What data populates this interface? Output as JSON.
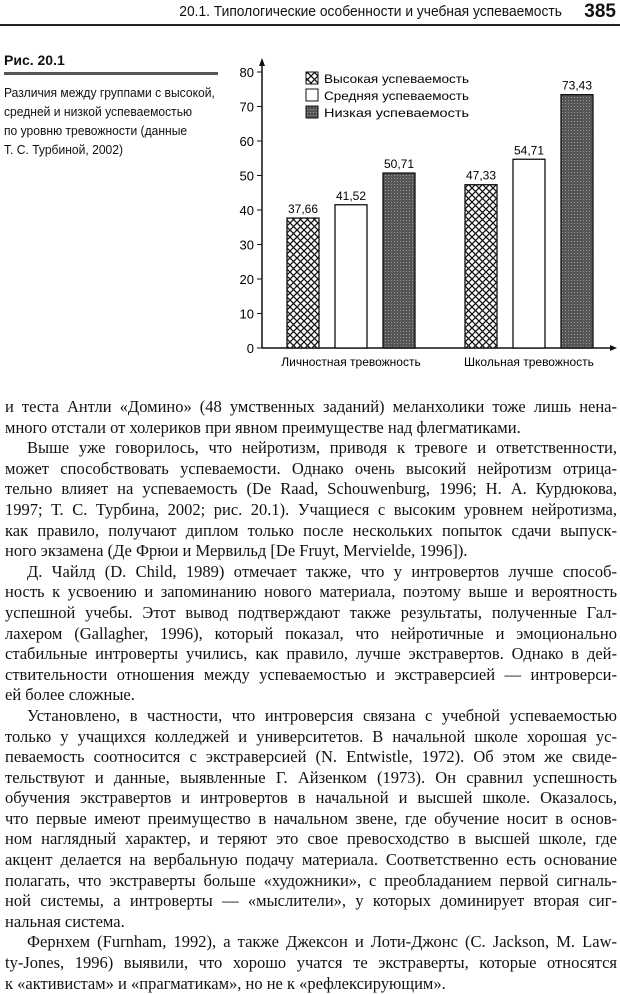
{
  "header": {
    "title": "20.1. Типологические особенности и учебная успеваемость",
    "page_number": "385"
  },
  "figure": {
    "label": "Рис. 20.1",
    "caption_lines": [
      "Различия между группами с высокой,",
      "средней и низкой успеваемостью",
      "по уровню тревожности (данные",
      "Т. С. Турбиной, 2002)"
    ]
  },
  "chart_data": {
    "type": "bar",
    "categories": [
      "Личностная тревожность",
      "Школьная тревожность"
    ],
    "series": [
      {
        "name": "Высокая успеваемость",
        "values": [
          37.66,
          47.33
        ],
        "labels": [
          "37,66",
          "47,33"
        ],
        "fill": "crosshatch"
      },
      {
        "name": "Средняя успеваемость",
        "values": [
          41.52,
          54.71
        ],
        "labels": [
          "41,52",
          "54,71"
        ],
        "fill": "white"
      },
      {
        "name": "Низкая успеваемость",
        "values": [
          50.71,
          73.43
        ],
        "labels": [
          "50,71",
          "73,43"
        ],
        "fill": "dark-stipple"
      }
    ],
    "yticks": [
      "0",
      "10",
      "20",
      "30",
      "40",
      "50",
      "60",
      "70",
      "80"
    ],
    "ylim": [
      0,
      85
    ],
    "grid": false,
    "legend": "top-left"
  },
  "body": {
    "paragraphs": [
      [
        "и теста Антли «Домино» (48 умственных заданий) меланхолики тоже лишь нена-",
        "много отстали от холериков при явном преимуществе над флегматиками."
      ],
      [
        "Выше уже говорилось, что нейротизм, приводя к тревоге и ответственности,",
        "может способствовать успеваемости. Однако очень высокий нейротизм отрица-",
        "тельно влияет на успеваемость (De Raad, Schouwenburg, 1996; Н. А. Курдюкова,",
        "1997; Т. С. Турбина, 2002; рис. 20.1). Учащиеся с высоким уровнем нейротизма,",
        "как правило, получают диплом только после нескольких попыток сдачи выпуск-",
        "ного экзамена (Де Фрюи и Мервильд [De Fruyt, Mervielde, 1996])."
      ],
      [
        "Д. Чайлд (D. Child, 1989) отмечает также, что у интровертов лучше способ-",
        "ность к усвоению и запоминанию нового материала, поэтому выше и вероятность",
        "успешной учебы. Этот вывод подтверждают также результаты, полученные Гал-",
        "лахером (Gallagher, 1996), который показал, что нейротичные и эмоционально",
        "стабильные интроверты учились, как правило, лучше экстравертов. Однако в дей-",
        "ствительности отношения между успеваемостью и экстраверсией — интроверси-",
        "ей более сложные."
      ],
      [
        "Установлено, в частности, что интроверсия связана с учебной успеваемостью",
        "только у учащихся колледжей и университетов. В начальной школе хорошая ус-",
        "певаемость соотносится с экстраверсией (N. Entwistle, 1972). Об этом же свиде-",
        "тельствуют и данные, выявленные Г. Айзенком (1973). Он сравнил успешность",
        "обучения экстравертов и интровертов в начальной и высшей школе. Оказалось,",
        "что первые имеют преимущество в начальном звене, где обучение носит в основ-",
        "ном наглядный характер, и теряют это свое превосходство в высшей школе, где",
        "акцент делается на вербальную подачу материала. Соответственно есть основание",
        "полагать, что экстраверты больше «художники», с преобладанием первой сигналь-",
        "ной системы, а интроверты — «мыслители», у которых доминирует вторая сиг-",
        "нальная система."
      ],
      [
        "Фернхем (Furnham, 1992), а также Джексон и Лоти-Джонс (C. Jackson, M. Law-",
        "ty-Jones, 1996) выявили, что хорошо учатся те экстраверты, которые относятся",
        "к «активистам» и «прагматикам», но не к «рефлексирующим»."
      ]
    ]
  }
}
